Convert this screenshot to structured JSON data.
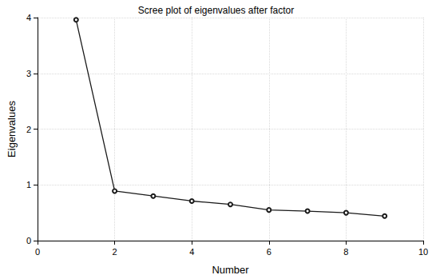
{
  "chart_data": {
    "type": "line",
    "title": "Scree plot of eigenvalues after factor",
    "x_label": "Number",
    "y_label": "Eigenvalues",
    "x": [
      1,
      2,
      3,
      4,
      5,
      6,
      7,
      8,
      9
    ],
    "values": [
      3.96,
      0.89,
      0.8,
      0.71,
      0.65,
      0.55,
      0.53,
      0.5,
      0.44
    ],
    "color": "#1a1a1a",
    "marker": "circle",
    "line_style": "solid",
    "xlim": [
      0,
      10
    ],
    "xticks": [
      0,
      2,
      4,
      6,
      8,
      10
    ],
    "ylim": [
      0,
      4
    ],
    "yticks": [
      0,
      1,
      2,
      3,
      4
    ],
    "grid": true
  }
}
